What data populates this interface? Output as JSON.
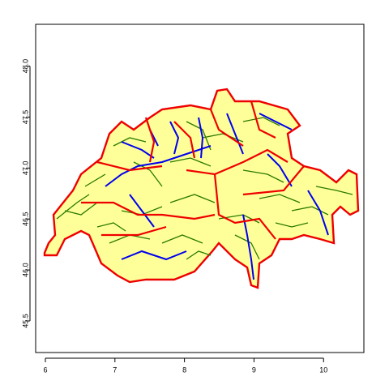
{
  "chart_data": {
    "type": "map",
    "xlim": [
      5.86,
      10.58
    ],
    "ylim": [
      45.19,
      48.41
    ],
    "xticks": [
      6,
      7,
      8,
      9,
      10
    ],
    "yticks": [
      45.5,
      {
        "value": 46,
        "label": "46.0"
      },
      46.5,
      {
        "value": 47,
        "label": "47.0"
      },
      47.5,
      {
        "value": 48,
        "label": "48.0"
      }
    ]
  }
}
